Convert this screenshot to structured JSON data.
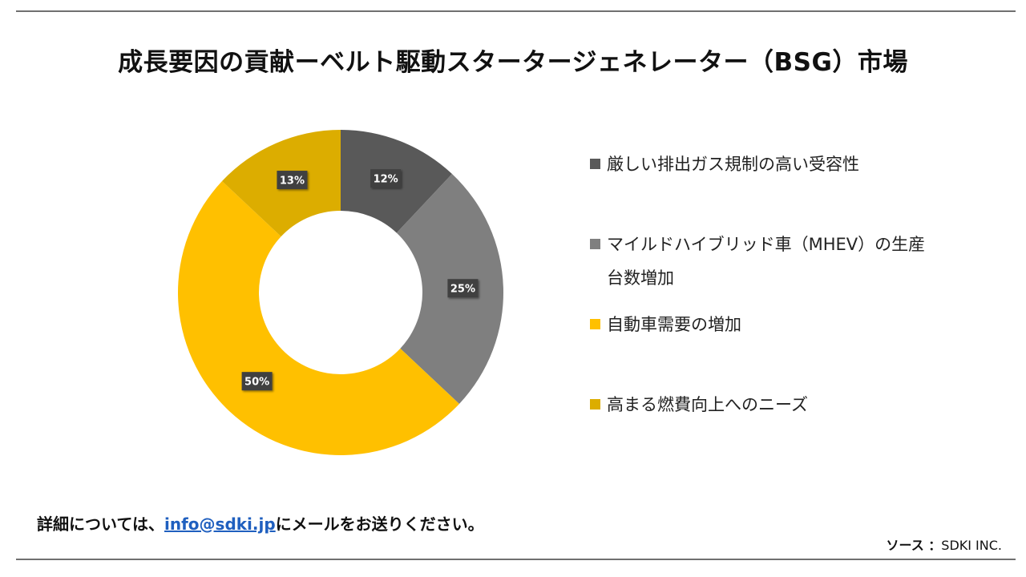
{
  "title": "成長要因の貢献ーベルト駆動スタータージェネレーター（BSG）市場",
  "chart_data": {
    "type": "pie",
    "donut": true,
    "title": "",
    "categories": [
      "厳しい排出ガス規制の高い受容性",
      "マイルドハイブリッド車（MHEV）の生産台数増加",
      "自動車需要の増加",
      "高まる燃費向上へのニーズ"
    ],
    "values": [
      12,
      25,
      50,
      13
    ],
    "labels": [
      "12%",
      "25%",
      "50%",
      "13%"
    ],
    "colors": [
      "#595959",
      "#7f7f7f",
      "#ffc000",
      "#dcad00"
    ],
    "legend_position": "right"
  },
  "legend": {
    "items": [
      {
        "label_line1": "厳しい排出ガス規制の高い受容性",
        "label_line2": "",
        "color": "#595959"
      },
      {
        "label_line1": "マイルドハイブリッド車（MHEV）の生産",
        "label_line2": "台数増加",
        "color": "#7f7f7f"
      },
      {
        "label_line1": "自動車需要の増加",
        "label_line2": "",
        "color": "#ffc000"
      },
      {
        "label_line1": "高まる燃費向上へのニーズ",
        "label_line2": "",
        "color": "#dcad00"
      }
    ]
  },
  "footer": {
    "text_before": "詳細については、",
    "email": "info@sdki.jp",
    "text_after": "にメールをお送りください。",
    "source_label": "ソース ：",
    "source_value": "SDKI INC."
  }
}
